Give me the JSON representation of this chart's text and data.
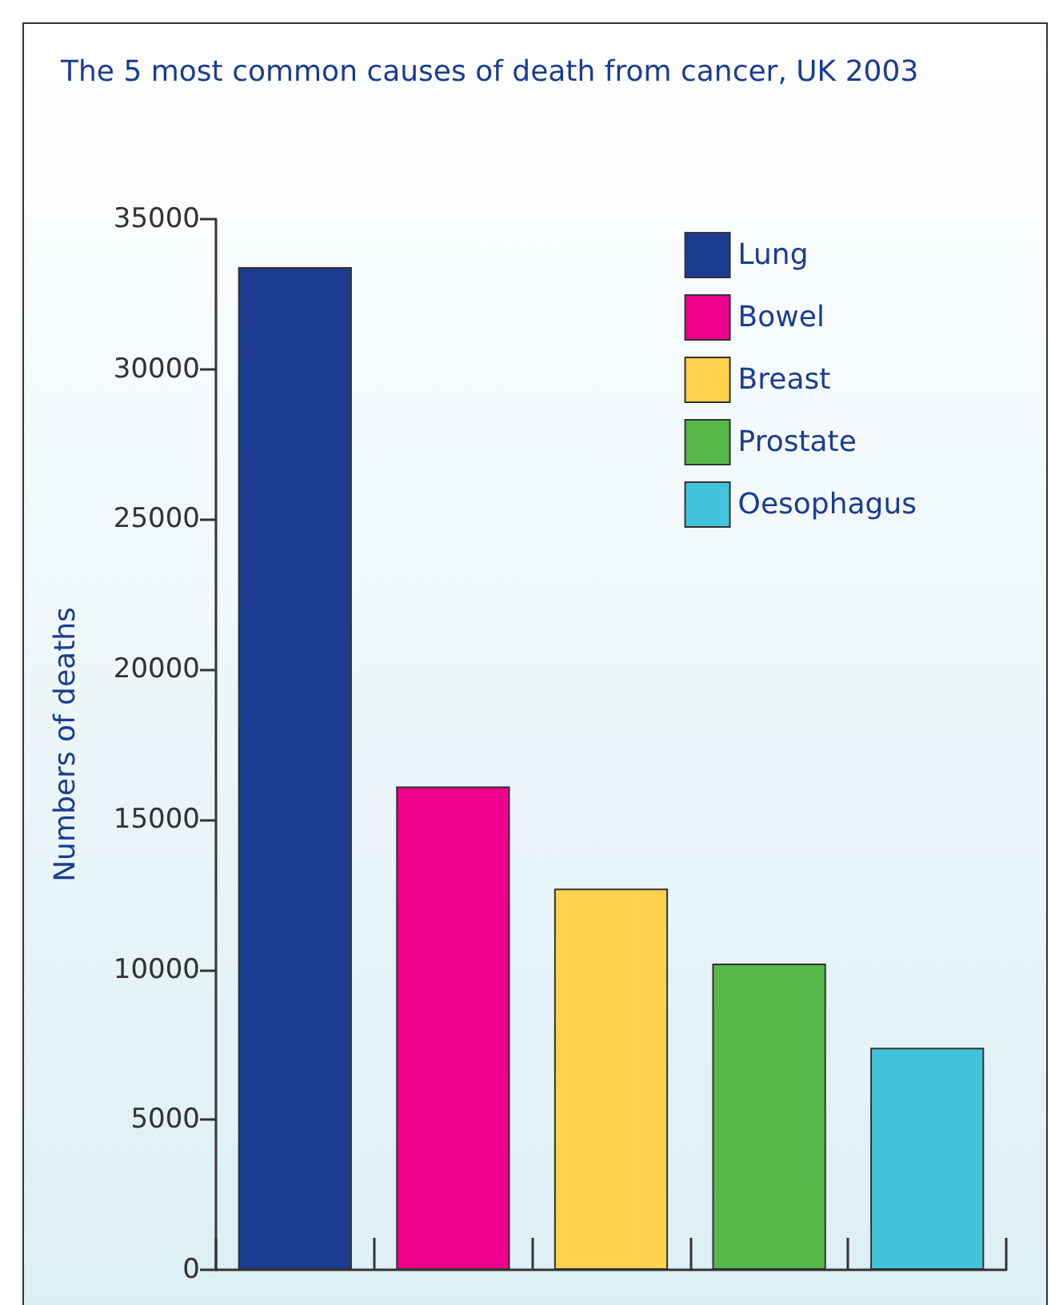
{
  "chart_data": {
    "type": "bar",
    "title": "The 5 most common causes of death from cancer, UK 2003",
    "ylabel": "Numbers of deaths",
    "categories": [
      null,
      null,
      null,
      null,
      null
    ],
    "series": [
      {
        "name": "Lung",
        "color": "#1c3c91",
        "values": [
          33400,
          null,
          null,
          null,
          null
        ]
      },
      {
        "name": "Bowel",
        "color": "#ec008c",
        "values": [
          null,
          16100,
          null,
          null,
          null
        ]
      },
      {
        "name": "Breast",
        "color": "#ffd24d",
        "values": [
          null,
          null,
          12700,
          null,
          null
        ]
      },
      {
        "name": "Prostate",
        "color": "#57b84a",
        "values": [
          null,
          null,
          null,
          10200,
          null
        ]
      },
      {
        "name": "Oesophagus",
        "color": "#42c3db",
        "values": [
          null,
          null,
          null,
          null,
          7400
        ]
      }
    ],
    "ylim": [
      0,
      35000
    ],
    "yticks": [
      0,
      5000,
      10000,
      15000,
      20000,
      25000,
      30000,
      35000
    ],
    "grid": false,
    "legend": "top right"
  }
}
